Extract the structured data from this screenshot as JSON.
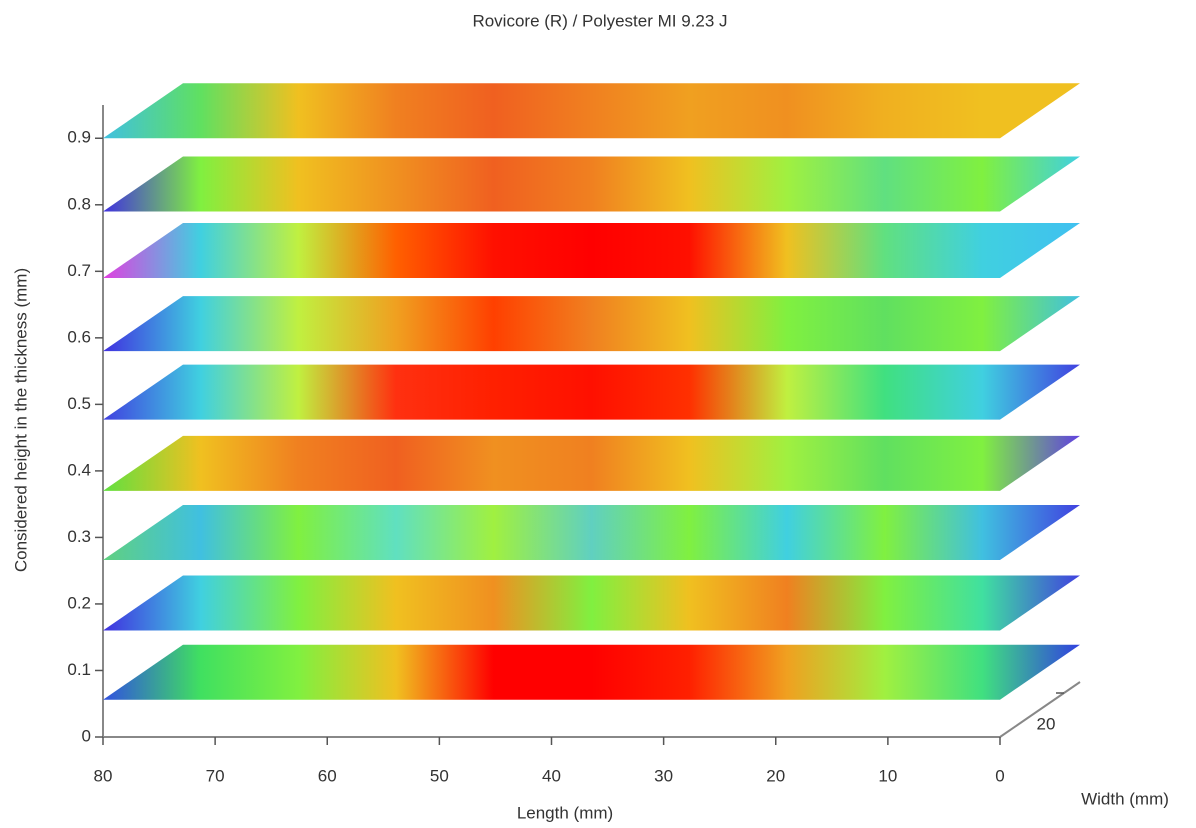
{
  "chart_data": {
    "type": "slices",
    "title": "Rovicore (R) / Polyester MI 9.23 J",
    "y_label": "Considered height in the thickness (mm)",
    "x_label": "Length (mm)",
    "width_label": "Width (mm)",
    "xlim": [
      80,
      0
    ],
    "xticks": [
      80,
      70,
      60,
      50,
      40,
      30,
      20,
      10,
      0
    ],
    "ylim": [
      0,
      0.95
    ],
    "yticks": [
      0,
      0.1,
      0.2,
      0.3,
      0.4,
      0.5,
      0.6,
      0.7,
      0.8,
      0.9
    ],
    "width_lim": [
      0,
      25
    ],
    "width_ticks": [
      20
    ],
    "slices": [
      {
        "height": 0.056,
        "colors": [
          "#3050e0",
          "#40e060",
          "#80f040",
          "#f0c020",
          "#ff0000",
          "#ff0000",
          "#ff2000",
          "#f0a020",
          "#a0f040",
          "#40e080",
          "#3040e0"
        ]
      },
      {
        "height": 0.16,
        "colors": [
          "#4030e0",
          "#40d0e0",
          "#80f040",
          "#f0c020",
          "#f09020",
          "#80f040",
          "#f0c020",
          "#f08020",
          "#80f040",
          "#40e0a0",
          "#4040e0"
        ]
      },
      {
        "height": 0.266,
        "colors": [
          "#60d080",
          "#40c0e0",
          "#80f040",
          "#60e0c0",
          "#a0f040",
          "#60d0c0",
          "#80f040",
          "#40d0e0",
          "#80f040",
          "#40c0e0",
          "#4040e0"
        ]
      },
      {
        "height": 0.37,
        "colors": [
          "#60e040",
          "#f0c020",
          "#f08020",
          "#f06020",
          "#f09020",
          "#f08020",
          "#f0c020",
          "#a0f040",
          "#60e060",
          "#80f040",
          "#6040e0"
        ]
      },
      {
        "height": 0.477,
        "colors": [
          "#4040e0",
          "#40d0e0",
          "#c0f040",
          "#ff3010",
          "#ff2000",
          "#ff1000",
          "#ff3000",
          "#c0f040",
          "#40e080",
          "#40d0e0",
          "#4040e0"
        ]
      },
      {
        "height": 0.58,
        "colors": [
          "#4030e0",
          "#40d0e0",
          "#c0f040",
          "#f0a020",
          "#ff4000",
          "#f08020",
          "#f0c020",
          "#80f040",
          "#60e060",
          "#80f040",
          "#40c0e0"
        ]
      },
      {
        "height": 0.69,
        "colors": [
          "#e040e0",
          "#40d0e0",
          "#c0f040",
          "#ff6000",
          "#ff1000",
          "#ff0000",
          "#ff1000",
          "#f0c020",
          "#60e080",
          "#40d0e0",
          "#40c0f0"
        ]
      },
      {
        "height": 0.79,
        "colors": [
          "#4030e0",
          "#80f040",
          "#f0c020",
          "#f09020",
          "#f06020",
          "#f08020",
          "#f0c020",
          "#a0f040",
          "#60e080",
          "#80f040",
          "#40d0e0"
        ]
      },
      {
        "height": 0.9,
        "colors": [
          "#40c0e0",
          "#60e060",
          "#f0c020",
          "#f08020",
          "#f06020",
          "#f08020",
          "#f0a020",
          "#f09020",
          "#f0b020",
          "#f0c020",
          "#f0c020"
        ]
      }
    ]
  }
}
